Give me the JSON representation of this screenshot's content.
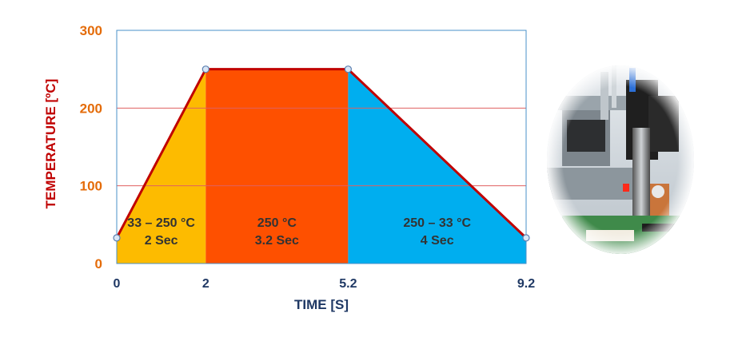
{
  "chart_data": {
    "type": "area",
    "title": "",
    "xlabel": "TIME  [S]",
    "ylabel": "TEMPERATURE  [ºC]",
    "x_ticks": [
      0,
      2,
      5.2,
      9.2
    ],
    "x_tick_labels": [
      "0",
      "2",
      "5.2",
      "9.2"
    ],
    "y_ticks": [
      0,
      100,
      200,
      300
    ],
    "y_tick_labels": [
      "0",
      "100",
      "200",
      "300"
    ],
    "xlim": [
      0,
      9.2
    ],
    "ylim": [
      0,
      300
    ],
    "grid": "horizontal",
    "series": [
      {
        "x": [
          0,
          2,
          5.2,
          9.2
        ],
        "y": [
          33,
          250,
          250,
          33
        ]
      }
    ],
    "segments": [
      {
        "x_start": 0,
        "x_end": 2,
        "line1": "33 – 250 °C",
        "line2": "2 Sec",
        "color": "#FDBB00"
      },
      {
        "x_start": 2,
        "x_end": 5.2,
        "line1": "250 °C",
        "line2": "3.2 Sec",
        "color": "#FE5000"
      },
      {
        "x_start": 5.2,
        "x_end": 9.2,
        "line1": "250 – 33 °C",
        "line2": "4 Sec",
        "color": "#00AEEF"
      }
    ]
  },
  "colors": {
    "line": "#C00000",
    "tick_label": "#E46C0A",
    "ylabel": "#C00000",
    "xlabel": "#1F3864",
    "x_tick_label": "#1F3864",
    "grid": "#E06060",
    "frame": "#4A90C8",
    "marker_fill": "#D9E6F5",
    "marker_stroke": "#5B7FB0",
    "segment_text": "#333333"
  },
  "photo": {
    "icon": "soldering-robot-photo"
  }
}
